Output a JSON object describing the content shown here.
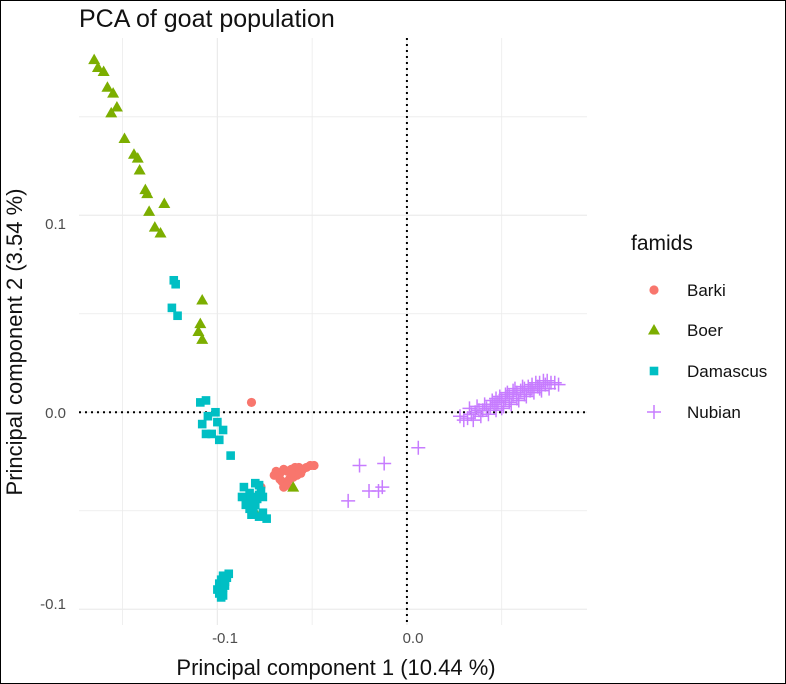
{
  "chart_data": {
    "type": "scatter",
    "title": "PCA of goat population",
    "xlabel": "Principal component 1 (10.44 %)",
    "ylabel": "Principal component 2 (3.54 %)",
    "xlim": [
      -0.173,
      0.095
    ],
    "ylim": [
      -0.108,
      0.19
    ],
    "x_ticks": [
      -0.1,
      0.0
    ],
    "x_tick_labels": [
      "-0.1",
      "0.0"
    ],
    "y_ticks": [
      -0.1,
      0.0,
      0.1
    ],
    "y_tick_labels": [
      "-0.1",
      "0.0",
      "0.1"
    ],
    "reference_lines": {
      "x": 0,
      "y": 0,
      "style": "dotted"
    },
    "grid": true,
    "legend_title": "famids",
    "legend_position": "right",
    "series": [
      {
        "name": "Barki",
        "shape": "circle",
        "color": "#F8766D",
        "points": [
          [
            -0.082,
            0.005
          ],
          [
            -0.069,
            -0.03
          ],
          [
            -0.067,
            -0.031
          ],
          [
            -0.065,
            -0.029
          ],
          [
            -0.063,
            -0.03
          ],
          [
            -0.061,
            -0.029
          ],
          [
            -0.059,
            -0.028
          ],
          [
            -0.057,
            -0.028
          ],
          [
            -0.055,
            -0.029
          ],
          [
            -0.053,
            -0.028
          ],
          [
            -0.051,
            -0.027
          ],
          [
            -0.049,
            -0.027
          ],
          [
            -0.066,
            -0.035
          ],
          [
            -0.064,
            -0.036
          ],
          [
            -0.062,
            -0.034
          ],
          [
            -0.06,
            -0.033
          ],
          [
            -0.058,
            -0.032
          ],
          [
            -0.056,
            -0.031
          ],
          [
            -0.065,
            -0.038
          ],
          [
            -0.063,
            -0.037
          ],
          [
            -0.067,
            -0.034
          ],
          [
            -0.061,
            -0.031
          ],
          [
            -0.077,
            -0.038
          ],
          [
            -0.07,
            -0.032
          ]
        ]
      },
      {
        "name": "Boer",
        "shape": "triangle",
        "color": "#7CAE00",
        "points": [
          [
            -0.165,
            0.179
          ],
          [
            -0.163,
            0.175
          ],
          [
            -0.16,
            0.173
          ],
          [
            -0.158,
            0.165
          ],
          [
            -0.155,
            0.162
          ],
          [
            -0.153,
            0.155
          ],
          [
            -0.156,
            0.152
          ],
          [
            -0.149,
            0.139
          ],
          [
            -0.144,
            0.131
          ],
          [
            -0.142,
            0.129
          ],
          [
            -0.141,
            0.123
          ],
          [
            -0.138,
            0.113
          ],
          [
            -0.137,
            0.111
          ],
          [
            -0.136,
            0.102
          ],
          [
            -0.128,
            0.106
          ],
          [
            -0.133,
            0.094
          ],
          [
            -0.13,
            0.091
          ],
          [
            -0.108,
            0.057
          ],
          [
            -0.109,
            0.045
          ],
          [
            -0.11,
            0.041
          ],
          [
            -0.108,
            0.037
          ],
          [
            -0.081,
            -0.049
          ],
          [
            -0.06,
            -0.038
          ]
        ]
      },
      {
        "name": "Damascus",
        "shape": "square",
        "color": "#00BFC4",
        "points": [
          [
            -0.123,
            0.067
          ],
          [
            -0.122,
            0.065
          ],
          [
            -0.124,
            0.053
          ],
          [
            -0.121,
            0.049
          ],
          [
            -0.106,
            0.006
          ],
          [
            -0.109,
            0.005
          ],
          [
            -0.101,
            0.0
          ],
          [
            -0.105,
            -0.002
          ],
          [
            -0.108,
            -0.006
          ],
          [
            -0.1,
            -0.005
          ],
          [
            -0.097,
            -0.009
          ],
          [
            -0.103,
            -0.011
          ],
          [
            -0.099,
            -0.014
          ],
          [
            -0.106,
            -0.011
          ],
          [
            -0.093,
            -0.022
          ],
          [
            -0.086,
            -0.038
          ],
          [
            -0.08,
            -0.036
          ],
          [
            -0.078,
            -0.037
          ],
          [
            -0.077,
            -0.04
          ],
          [
            -0.083,
            -0.041
          ],
          [
            -0.081,
            -0.043
          ],
          [
            -0.079,
            -0.044
          ],
          [
            -0.084,
            -0.045
          ],
          [
            -0.082,
            -0.046
          ],
          [
            -0.08,
            -0.047
          ],
          [
            -0.078,
            -0.042
          ],
          [
            -0.076,
            -0.043
          ],
          [
            -0.083,
            -0.049
          ],
          [
            -0.081,
            -0.05
          ],
          [
            -0.078,
            -0.053
          ],
          [
            -0.076,
            -0.051
          ],
          [
            -0.074,
            -0.054
          ],
          [
            -0.082,
            -0.052
          ],
          [
            -0.087,
            -0.043
          ],
          [
            -0.085,
            -0.047
          ],
          [
            -0.097,
            -0.083
          ],
          [
            -0.098,
            -0.085
          ],
          [
            -0.099,
            -0.087
          ],
          [
            -0.097,
            -0.089
          ],
          [
            -0.096,
            -0.086
          ],
          [
            -0.095,
            -0.084
          ],
          [
            -0.094,
            -0.082
          ],
          [
            -0.098,
            -0.091
          ],
          [
            -0.1,
            -0.09
          ],
          [
            -0.097,
            -0.093
          ],
          [
            -0.099,
            -0.092
          ],
          [
            -0.096,
            -0.088
          ],
          [
            -0.098,
            -0.094
          ]
        ]
      },
      {
        "name": "Nubian",
        "shape": "plus",
        "color": "#C77CFF",
        "points": [
          [
            0.006,
            -0.018
          ],
          [
            -0.012,
            -0.026
          ],
          [
            -0.025,
            -0.027
          ],
          [
            -0.013,
            -0.038
          ],
          [
            -0.015,
            -0.04
          ],
          [
            -0.02,
            -0.04
          ],
          [
            -0.031,
            -0.045
          ],
          [
            0.03,
            -0.004
          ],
          [
            0.028,
            -0.002
          ],
          [
            0.032,
            -0.003
          ],
          [
            0.034,
            -0.001
          ],
          [
            0.036,
            0.0
          ],
          [
            0.038,
            0.001
          ],
          [
            0.04,
            0.001
          ],
          [
            0.042,
            0.002
          ],
          [
            0.044,
            0.003
          ],
          [
            0.046,
            0.004
          ],
          [
            0.048,
            0.005
          ],
          [
            0.05,
            0.006
          ],
          [
            0.052,
            0.007
          ],
          [
            0.054,
            0.008
          ],
          [
            0.056,
            0.009
          ],
          [
            0.058,
            0.01
          ],
          [
            0.06,
            0.011
          ],
          [
            0.062,
            0.012
          ],
          [
            0.064,
            0.013
          ],
          [
            0.066,
            0.014
          ],
          [
            0.068,
            0.015
          ],
          [
            0.07,
            0.015
          ],
          [
            0.072,
            0.016
          ],
          [
            0.074,
            0.016
          ],
          [
            0.076,
            0.015
          ],
          [
            0.078,
            0.015
          ],
          [
            0.08,
            0.014
          ],
          [
            0.035,
            -0.004
          ],
          [
            0.039,
            -0.002
          ],
          [
            0.043,
            -0.001
          ],
          [
            0.047,
            0.001
          ],
          [
            0.051,
            0.003
          ],
          [
            0.055,
            0.004
          ],
          [
            0.059,
            0.006
          ],
          [
            0.063,
            0.008
          ],
          [
            0.067,
            0.01
          ],
          [
            0.071,
            0.011
          ],
          [
            0.075,
            0.012
          ],
          [
            0.041,
            0.004
          ],
          [
            0.045,
            0.006
          ],
          [
            0.049,
            0.008
          ],
          [
            0.053,
            0.01
          ],
          [
            0.057,
            0.012
          ],
          [
            0.061,
            0.013
          ],
          [
            0.065,
            0.011
          ],
          [
            0.069,
            0.013
          ],
          [
            0.073,
            0.014
          ],
          [
            0.033,
            0.002
          ],
          [
            0.037,
            0.003
          ],
          [
            0.05,
            0.002
          ],
          [
            0.054,
            0.005
          ],
          [
            0.058,
            0.007
          ],
          [
            0.062,
            0.009
          ],
          [
            0.066,
            0.012
          ],
          [
            0.07,
            0.012
          ],
          [
            0.047,
            0.007
          ],
          [
            0.052,
            0.009
          ],
          [
            0.056,
            0.011
          ]
        ]
      }
    ]
  }
}
